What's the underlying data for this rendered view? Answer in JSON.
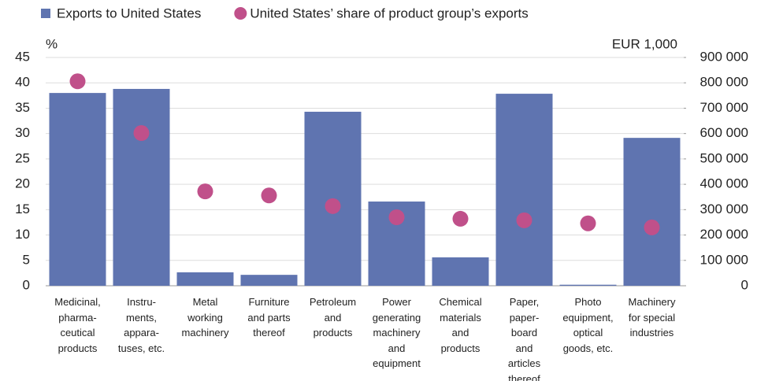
{
  "chart_data": {
    "type": "bar",
    "y_label": "%",
    "y2_label": "EUR 1,000",
    "categories": [
      "Medicinal,\npharma-\nceutical\nproducts",
      "Instru-\nments,\nappara-\ntuses, etc.",
      "Metal\nworking\nmachinery",
      "Furniture\nand parts\nthereof",
      "Petroleum\nand\nproducts",
      "Power\ngenerating\nmachinery\nand\nequipment",
      "Chemical\nmaterials\nand\nproducts",
      "Paper,\npaper-\nboard\nand\narticles\nthereof",
      "Photo\nequipment,\noptical\ngoods, etc.",
      "Machinery\nfor special\nindustries"
    ],
    "series": [
      {
        "name": "Exports to United States",
        "type": "bar",
        "axis": "y2",
        "color": "#5f74b0",
        "values": [
          760000,
          776000,
          53000,
          43000,
          686000,
          332000,
          112000,
          757000,
          4000,
          583000
        ]
      },
      {
        "name": "United States’ share of product group’s exports",
        "type": "scatter",
        "axis": "y",
        "color": "#c0508a",
        "values": [
          40.3,
          30.1,
          18.6,
          17.8,
          15.7,
          13.5,
          13.2,
          12.9,
          12.3,
          11.5
        ]
      }
    ],
    "ylim": [
      0,
      45
    ],
    "yticks": [
      0,
      5,
      10,
      15,
      20,
      25,
      30,
      35,
      40,
      45
    ],
    "y2lim": [
      0,
      900000
    ],
    "y2ticks": [
      {
        "value": 0,
        "label": "0"
      },
      {
        "value": 100000,
        "label": "100 000"
      },
      {
        "value": 200000,
        "label": "200 000"
      },
      {
        "value": 300000,
        "label": "300 000"
      },
      {
        "value": 400000,
        "label": "400 000"
      },
      {
        "value": 500000,
        "label": "500 000"
      },
      {
        "value": 600000,
        "label": "600 000"
      },
      {
        "value": 700000,
        "label": "700 000"
      },
      {
        "value": 800000,
        "label": "800 000"
      },
      {
        "value": 900000,
        "label": "900 000"
      }
    ],
    "grid": true,
    "legend": "top"
  }
}
